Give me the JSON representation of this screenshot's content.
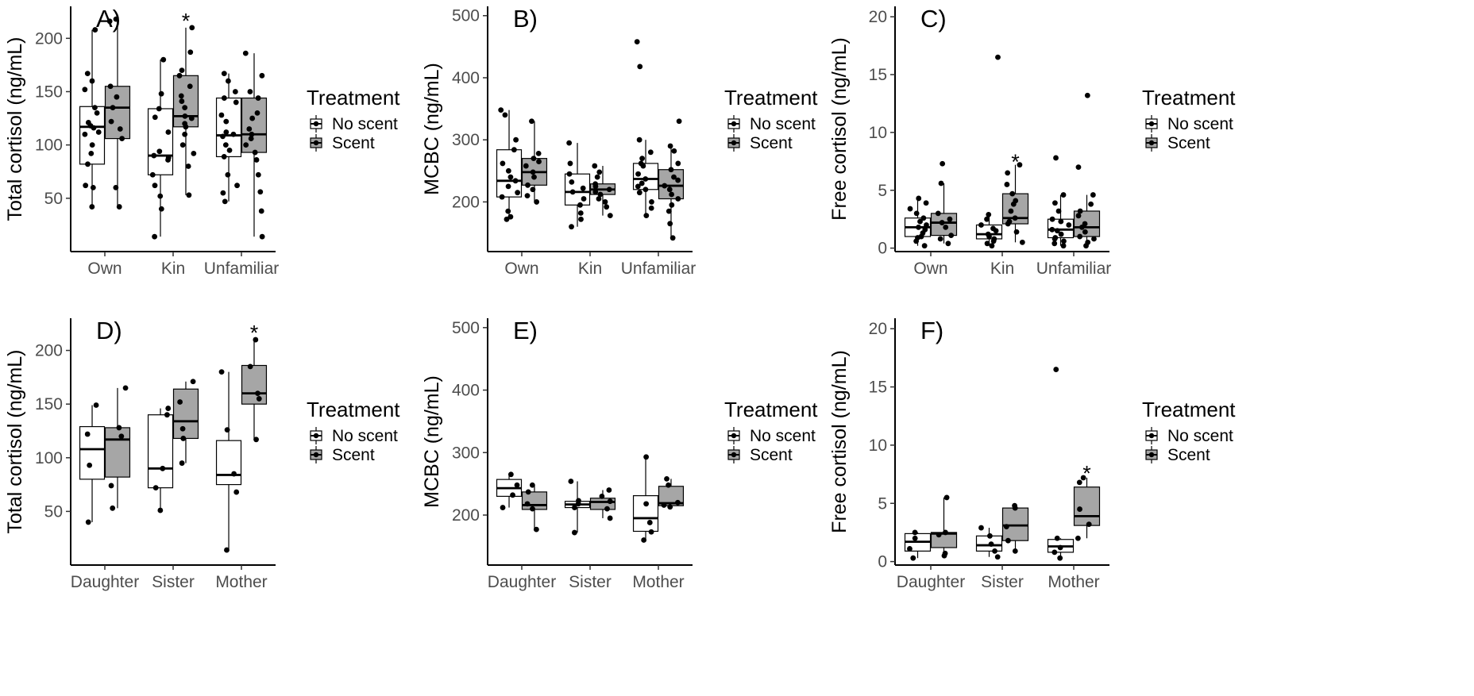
{
  "figure": {
    "legend": {
      "title": "Treatment",
      "entries": [
        "No scent",
        "Scent"
      ],
      "colors": {
        "No scent": "#ffffff",
        "Scent": "#a6a6a6"
      }
    },
    "significance_marker": "*"
  },
  "chart_data": [
    {
      "panel": "A)",
      "type": "box",
      "ylabel": "Total cortisol (ng/mL)",
      "ylim": [
        0,
        230
      ],
      "yticks": [
        "50",
        "100",
        "150",
        "200"
      ],
      "ytick_values": [
        50,
        100,
        150,
        200
      ],
      "categories": [
        "Own",
        "Kin",
        "Unfamiliar"
      ],
      "legend_title": "Treatment",
      "series": [
        {
          "name": "No scent",
          "color": "#ffffff",
          "boxes": [
            {
              "whislo": 42,
              "q1": 82,
              "med": 117,
              "q3": 136,
              "whishi": 208,
              "points": [
                42,
                60,
                62,
                82,
                92,
                100,
                110,
                112,
                116,
                118,
                121,
                130,
                135,
                152,
                160,
                167,
                208
              ]
            },
            {
              "whislo": 14,
              "q1": 72,
              "med": 90,
              "q3": 134,
              "whishi": 180,
              "points": [
                14,
                40,
                52,
                62,
                72,
                86,
                88,
                90,
                94,
                112,
                126,
                134,
                148,
                180
              ]
            },
            {
              "whislo": 47,
              "q1": 89,
              "med": 109,
              "q3": 144,
              "whishi": 167,
              "points": [
                47,
                55,
                62,
                72,
                89,
                95,
                100,
                108,
                110,
                112,
                122,
                128,
                140,
                144,
                150,
                160,
                167
              ]
            }
          ]
        },
        {
          "name": "Scent",
          "color": "#a6a6a6",
          "boxes": [
            {
              "whislo": 42,
              "q1": 106,
              "med": 135,
              "q3": 155,
              "whishi": 218,
              "points": [
                42,
                60,
                106,
                115,
                122,
                135,
                145,
                155,
                216,
                218
              ]
            },
            {
              "whislo": 53,
              "q1": 117,
              "med": 127,
              "q3": 165,
              "whishi": 210,
              "points": [
                53,
                80,
                92,
                100,
                110,
                117,
                120,
                125,
                127,
                135,
                141,
                146,
                155,
                165,
                170,
                187,
                210
              ]
            },
            {
              "whislo": 14,
              "q1": 93,
              "med": 110,
              "q3": 144,
              "whishi": 186,
              "points": [
                14,
                38,
                56,
                72,
                86,
                93,
                100,
                106,
                110,
                115,
                125,
                130,
                144,
                150,
                165,
                186
              ]
            }
          ]
        }
      ],
      "annotations": [
        {
          "category": "Kin",
          "series": "Scent",
          "y": 220,
          "text": "*"
        }
      ]
    },
    {
      "panel": "B)",
      "type": "box",
      "ylabel": "MCBC (ng/mL)",
      "ylim": [
        120,
        515
      ],
      "yticks": [
        "200",
        "300",
        "400",
        "500"
      ],
      "ytick_values": [
        200,
        300,
        400,
        500
      ],
      "categories": [
        "Own",
        "Kin",
        "Unfamiliar"
      ],
      "legend_title": "Treatment",
      "series": [
        {
          "name": "No scent",
          "color": "#ffffff",
          "boxes": [
            {
              "whislo": 172,
              "q1": 208,
              "med": 234,
              "q3": 284,
              "whishi": 348,
              "points": [
                172,
                176,
                185,
                208,
                215,
                225,
                234,
                240,
                250,
                262,
                284,
                300,
                340,
                348
              ]
            },
            {
              "whislo": 160,
              "q1": 195,
              "med": 216,
              "q3": 245,
              "whishi": 295,
              "points": [
                160,
                172,
                182,
                195,
                205,
                216,
                222,
                232,
                245,
                262,
                295
              ]
            },
            {
              "whislo": 178,
              "q1": 220,
              "med": 237,
              "q3": 262,
              "whishi": 300,
              "points": [
                178,
                190,
                200,
                215,
                220,
                225,
                230,
                237,
                245,
                258,
                262,
                270,
                280,
                300,
                418,
                458
              ]
            }
          ]
        },
        {
          "name": "Scent",
          "color": "#a6a6a6",
          "boxes": [
            {
              "whislo": 200,
              "q1": 227,
              "med": 248,
              "q3": 270,
              "whishi": 330,
              "points": [
                200,
                210,
                220,
                227,
                240,
                248,
                258,
                265,
                270,
                278,
                330
              ]
            },
            {
              "whislo": 178,
              "q1": 212,
              "med": 220,
              "q3": 229,
              "whishi": 258,
              "points": [
                178,
                192,
                200,
                205,
                212,
                216,
                220,
                225,
                229,
                240,
                248,
                258
              ]
            },
            {
              "whislo": 142,
              "q1": 205,
              "med": 226,
              "q3": 252,
              "whishi": 290,
              "points": [
                142,
                165,
                185,
                195,
                205,
                212,
                220,
                226,
                235,
                240,
                252,
                262,
                282,
                290,
                330
              ]
            }
          ]
        }
      ],
      "annotations": []
    },
    {
      "panel": "C)",
      "type": "box",
      "ylabel": "Free cortisol (ng/mL)",
      "ylim": [
        -0.3,
        20.9
      ],
      "yticks": [
        "0",
        "5",
        "10",
        "15",
        "20"
      ],
      "ytick_values": [
        0,
        5,
        10,
        15,
        20
      ],
      "categories": [
        "Own",
        "Kin",
        "Unfamiliar"
      ],
      "legend_title": "Treatment",
      "series": [
        {
          "name": "No scent",
          "color": "#ffffff",
          "boxes": [
            {
              "whislo": 0.2,
              "q1": 1.0,
              "med": 1.8,
              "q3": 2.6,
              "whishi": 4.3,
              "points": [
                0.2,
                0.6,
                0.9,
                1.0,
                1.3,
                1.6,
                1.8,
                2.0,
                2.3,
                2.6,
                3.0,
                3.4,
                3.9,
                4.3
              ]
            },
            {
              "whislo": 0.2,
              "q1": 0.8,
              "med": 1.2,
              "q3": 2.0,
              "whishi": 2.9,
              "points": [
                0.2,
                0.4,
                0.6,
                0.8,
                1.0,
                1.2,
                1.5,
                1.7,
                2.0,
                2.5,
                2.9,
                16.5
              ]
            },
            {
              "whislo": 0.2,
              "q1": 0.9,
              "med": 1.6,
              "q3": 2.5,
              "whishi": 4.6,
              "points": [
                0.2,
                0.4,
                0.6,
                0.8,
                0.9,
                1.2,
                1.5,
                1.6,
                2.0,
                2.3,
                2.5,
                3.2,
                3.9,
                4.6,
                7.8
              ]
            }
          ]
        },
        {
          "name": "Scent",
          "color": "#a6a6a6",
          "boxes": [
            {
              "whislo": 0.4,
              "q1": 1.1,
              "med": 2.2,
              "q3": 3.0,
              "whishi": 5.6,
              "points": [
                0.4,
                0.8,
                1.1,
                1.8,
                2.2,
                2.5,
                3.0,
                5.6,
                7.3
              ]
            },
            {
              "whislo": 0.5,
              "q1": 2.1,
              "med": 2.6,
              "q3": 4.7,
              "whishi": 7.2,
              "points": [
                0.5,
                1.4,
                2.1,
                2.3,
                2.6,
                3.2,
                3.8,
                4.1,
                4.7,
                5.5,
                6.5,
                7.2
              ]
            },
            {
              "whislo": 0.2,
              "q1": 1.0,
              "med": 1.8,
              "q3": 3.2,
              "whishi": 4.6,
              "points": [
                0.2,
                0.5,
                0.8,
                1.0,
                1.4,
                1.8,
                2.1,
                2.8,
                3.2,
                3.8,
                4.6,
                7.0,
                13.2
              ]
            }
          ]
        }
      ],
      "annotations": [
        {
          "category": "Kin",
          "series": "Scent",
          "y": 7.8,
          "text": "*"
        }
      ]
    },
    {
      "panel": "D)",
      "type": "box",
      "ylabel": "Total cortisol (ng/mL)",
      "ylim": [
        0,
        230
      ],
      "yticks": [
        "50",
        "100",
        "150",
        "200"
      ],
      "ytick_values": [
        50,
        100,
        150,
        200
      ],
      "categories": [
        "Daughter",
        "Sister",
        "Mother"
      ],
      "legend_title": "Treatment",
      "series": [
        {
          "name": "No scent",
          "color": "#ffffff",
          "boxes": [
            {
              "whislo": 40,
              "q1": 80,
              "med": 108,
              "q3": 129,
              "whishi": 149,
              "points": [
                40,
                93,
                122,
                149
              ]
            },
            {
              "whislo": 51,
              "q1": 72,
              "med": 90,
              "q3": 140,
              "whishi": 146,
              "points": [
                51,
                72,
                90,
                140,
                146
              ]
            },
            {
              "whislo": 14,
              "q1": 75,
              "med": 84,
              "q3": 116,
              "whishi": 180,
              "points": [
                14,
                68,
                85,
                126,
                180
              ]
            }
          ]
        },
        {
          "name": "Scent",
          "color": "#a6a6a6",
          "boxes": [
            {
              "whislo": 53,
              "q1": 82,
              "med": 117,
              "q3": 128,
              "whishi": 165,
              "points": [
                53,
                74,
                120,
                128,
                165
              ]
            },
            {
              "whislo": 95,
              "q1": 118,
              "med": 134,
              "q3": 164,
              "whishi": 171,
              "points": [
                95,
                118,
                127,
                152,
                171
              ]
            },
            {
              "whislo": 117,
              "q1": 150,
              "med": 160,
              "q3": 186,
              "whishi": 210,
              "points": [
                117,
                155,
                160,
                185,
                210
              ]
            }
          ]
        }
      ],
      "annotations": [
        {
          "category": "Mother",
          "series": "Scent",
          "y": 220,
          "text": "*"
        }
      ]
    },
    {
      "panel": "E)",
      "type": "box",
      "ylabel": "MCBC (ng/mL)",
      "ylim": [
        120,
        515
      ],
      "yticks": [
        "200",
        "300",
        "400",
        "500"
      ],
      "ytick_values": [
        200,
        300,
        400,
        500
      ],
      "categories": [
        "Daughter",
        "Sister",
        "Mother"
      ],
      "legend_title": "Treatment",
      "series": [
        {
          "name": "No scent",
          "color": "#ffffff",
          "boxes": [
            {
              "whislo": 212,
              "q1": 230,
              "med": 243,
              "q3": 257,
              "whishi": 265,
              "points": [
                212,
                232,
                248,
                265
              ]
            },
            {
              "whislo": 172,
              "q1": 212,
              "med": 217,
              "q3": 222,
              "whishi": 254,
              "points": [
                172,
                212,
                218,
                223,
                254
              ]
            },
            {
              "whislo": 160,
              "q1": 174,
              "med": 195,
              "q3": 231,
              "whishi": 293,
              "points": [
                160,
                173,
                188,
                218,
                293
              ]
            }
          ]
        },
        {
          "name": "Scent",
          "color": "#a6a6a6",
          "boxes": [
            {
              "whislo": 177,
              "q1": 209,
              "med": 216,
              "q3": 237,
              "whishi": 248,
              "points": [
                177,
                210,
                218,
                237,
                248
              ]
            },
            {
              "whislo": 195,
              "q1": 209,
              "med": 221,
              "q3": 227,
              "whishi": 240,
              "points": [
                195,
                210,
                222,
                230,
                240
              ]
            },
            {
              "whislo": 213,
              "q1": 215,
              "med": 219,
              "q3": 246,
              "whishi": 258,
              "points": [
                213,
                216,
                220,
                248,
                258
              ]
            }
          ]
        }
      ],
      "annotations": []
    },
    {
      "panel": "F)",
      "type": "box",
      "ylabel": "Free cortisol (ng/mL)",
      "ylim": [
        -0.3,
        20.9
      ],
      "yticks": [
        "0",
        "5",
        "10",
        "15",
        "20"
      ],
      "ytick_values": [
        0,
        5,
        10,
        15,
        20
      ],
      "categories": [
        "Daughter",
        "Sister",
        "Mother"
      ],
      "legend_title": "Treatment",
      "series": [
        {
          "name": "No scent",
          "color": "#ffffff",
          "boxes": [
            {
              "whislo": 0.3,
              "q1": 0.9,
              "med": 1.7,
              "q3": 2.4,
              "whishi": 2.5,
              "points": [
                0.3,
                1.1,
                2.0,
                2.5
              ]
            },
            {
              "whislo": 0.4,
              "q1": 0.9,
              "med": 1.4,
              "q3": 2.2,
              "whishi": 2.9,
              "points": [
                0.4,
                0.9,
                1.5,
                2.2,
                2.9
              ]
            },
            {
              "whislo": 0.3,
              "q1": 0.8,
              "med": 1.3,
              "q3": 1.9,
              "whishi": 2.0,
              "points": [
                0.3,
                0.8,
                1.2,
                2.0,
                16.5
              ]
            }
          ]
        },
        {
          "name": "Scent",
          "color": "#a6a6a6",
          "boxes": [
            {
              "whislo": 0.5,
              "q1": 1.2,
              "med": 2.4,
              "q3": 2.5,
              "whishi": 5.5,
              "points": [
                0.5,
                0.7,
                2.3,
                2.5,
                5.5
              ]
            },
            {
              "whislo": 0.9,
              "q1": 1.8,
              "med": 3.1,
              "q3": 4.6,
              "whishi": 4.8,
              "points": [
                0.9,
                1.8,
                3.0,
                4.6,
                4.8
              ]
            },
            {
              "whislo": 2.0,
              "q1": 3.1,
              "med": 3.9,
              "q3": 6.4,
              "whishi": 7.2,
              "points": [
                2.0,
                3.2,
                4.5,
                6.8,
                7.2
              ]
            }
          ]
        }
      ],
      "annotations": [
        {
          "category": "Mother",
          "series": "Scent",
          "y": 7.9,
          "text": "*"
        }
      ]
    }
  ]
}
